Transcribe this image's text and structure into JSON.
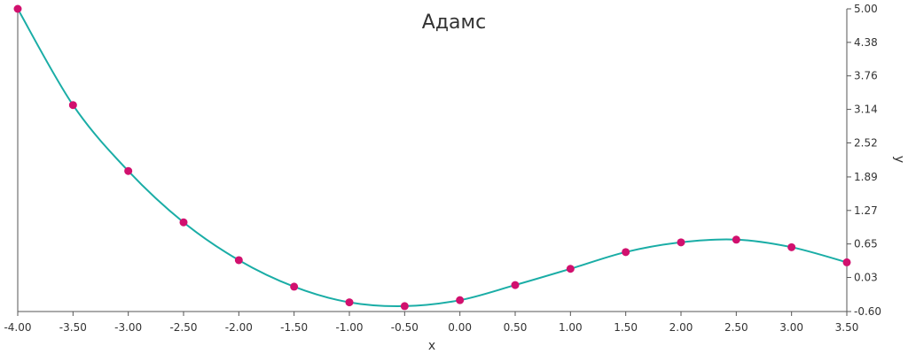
{
  "chart_data": {
    "type": "line",
    "title": "Адамс",
    "xlabel": "x",
    "ylabel": "y",
    "xlim": [
      -4.0,
      3.5
    ],
    "ylim": [
      -0.6,
      5.0
    ],
    "x_ticks": [
      "-4.00",
      "-3.50",
      "-3.00",
      "-2.50",
      "-2.00",
      "-1.50",
      "-1.00",
      "-0.50",
      "0.00",
      "0.50",
      "1.00",
      "1.50",
      "2.00",
      "2.50",
      "3.00",
      "3.50"
    ],
    "y_ticks": [
      "5.00",
      "4.38",
      "3.76",
      "3.14",
      "2.52",
      "1.89",
      "1.27",
      "0.65",
      "0.03",
      "-0.60"
    ],
    "grid": false,
    "y_axis_side": "right",
    "line_color": "#1aada6",
    "marker_color": "#d1106e",
    "series": [
      {
        "x": [
          -4.0,
          -3.5,
          -3.0,
          -2.5,
          -2.0,
          -1.5,
          -1.0,
          -0.5,
          0.0,
          0.5,
          1.0,
          1.5,
          2.0,
          2.5,
          3.0,
          3.5
        ],
        "values": [
          5.0,
          3.22,
          2.0,
          1.05,
          0.35,
          -0.14,
          -0.43,
          -0.5,
          -0.39,
          -0.11,
          0.19,
          0.5,
          0.68,
          0.73,
          0.59,
          0.31
        ]
      }
    ]
  }
}
